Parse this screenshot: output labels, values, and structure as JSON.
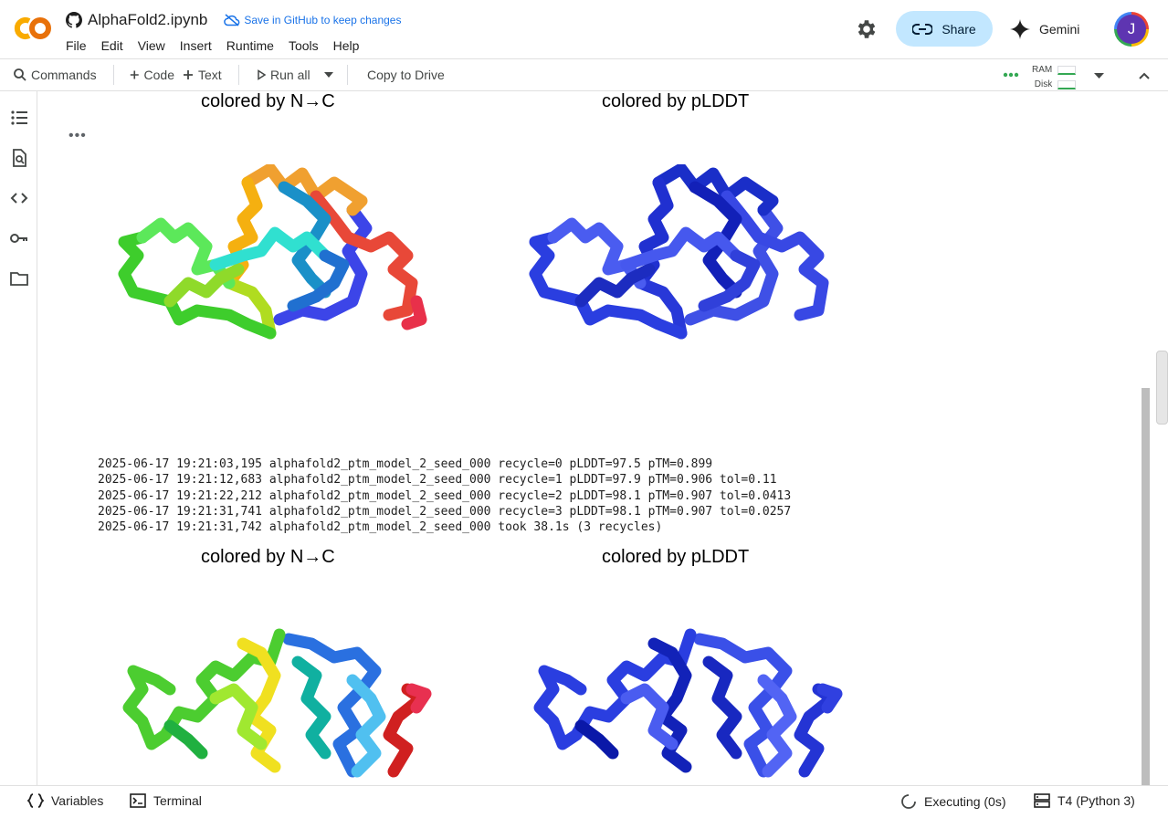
{
  "app": {
    "notebook_title": "AlphaFold2.ipynb",
    "save_github": "Save in GitHub to keep changes",
    "menu": [
      "File",
      "Edit",
      "View",
      "Insert",
      "Runtime",
      "Tools",
      "Help"
    ],
    "share_label": "Share",
    "gemini_label": "Gemini",
    "avatar_initial": "J"
  },
  "toolbar": {
    "commands": "Commands",
    "code": "Code",
    "text": "Text",
    "run_all": "Run all",
    "copy_to_drive": "Copy to Drive",
    "ram": "RAM",
    "disk": "Disk"
  },
  "output": {
    "panel_left_title": "colored by N→C",
    "panel_right_title": "colored by pLDDT",
    "log_lines": [
      "2025-06-17 19:21:03,195 alphafold2_ptm_model_2_seed_000 recycle=0 pLDDT=97.5 pTM=0.899",
      "2025-06-17 19:21:12,683 alphafold2_ptm_model_2_seed_000 recycle=1 pLDDT=97.9 pTM=0.906 tol=0.11",
      "2025-06-17 19:21:22,212 alphafold2_ptm_model_2_seed_000 recycle=2 pLDDT=98.1 pTM=0.907 tol=0.0413",
      "2025-06-17 19:21:31,741 alphafold2_ptm_model_2_seed_000 recycle=3 pLDDT=98.1 pTM=0.907 tol=0.0257",
      "2025-06-17 19:21:31,742 alphafold2_ptm_model_2_seed_000 took 38.1s (3 recycles)"
    ]
  },
  "statusbar": {
    "variables": "Variables",
    "terminal": "Terminal",
    "executing": "Executing (0s)",
    "runtime": "T4 (Python 3)"
  },
  "colors": {
    "accent": "#1a73e8",
    "share_bg": "#c2e7ff",
    "avatar_bg": "#5e35b1"
  }
}
